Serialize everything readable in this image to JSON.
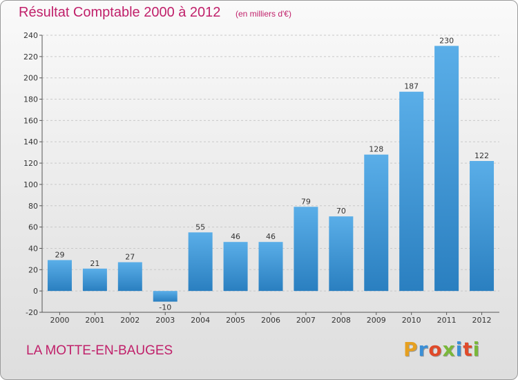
{
  "header": {
    "title": "Résultat Comptable 2000 à 2012",
    "subtitle": "(en milliers d'€)"
  },
  "footer": {
    "commune": "LA MOTTE-EN-BAUGES",
    "logo": {
      "letters": [
        "P",
        "r",
        "o",
        "x",
        "i",
        "t",
        "i"
      ],
      "colors": [
        "#e6a020",
        "#3b8fd6",
        "#e04a2a",
        "#7ab83a",
        "#3b8fd6",
        "#e04a2a",
        "#7ab83a"
      ]
    }
  },
  "colors": {
    "accent": "#c0206a",
    "bar_top": "#5aaee8",
    "bar_bottom": "#2a7fc0",
    "grid": "#c8c8c8"
  },
  "chart_data": {
    "type": "bar",
    "categories": [
      "2000",
      "2001",
      "2002",
      "2003",
      "2004",
      "2005",
      "2006",
      "2007",
      "2008",
      "2009",
      "2010",
      "2011",
      "2012"
    ],
    "values": [
      29,
      21,
      27,
      -10,
      55,
      46,
      46,
      79,
      70,
      128,
      187,
      230,
      122
    ],
    "data_labels": [
      "29",
      "21",
      "27",
      "-10",
      "55",
      "46",
      "46",
      "79",
      "70",
      "128",
      "187",
      "230",
      "122"
    ],
    "ylim": [
      -20,
      240
    ],
    "yticks": [
      -20,
      0,
      20,
      40,
      60,
      80,
      100,
      120,
      140,
      160,
      180,
      200,
      220,
      240
    ],
    "grid": true,
    "title": "Résultat Comptable 2000 à 2012",
    "xlabel": "",
    "ylabel": ""
  }
}
